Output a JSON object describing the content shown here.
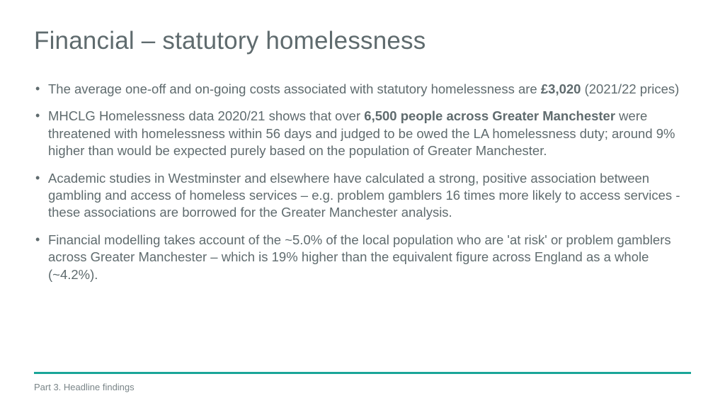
{
  "title": "Financial – statutory homelessness",
  "bullets": [
    {
      "pre": "The average one-off and on-going costs associated with statutory homelessness are ",
      "bold": "£3,020",
      "post": " (2021/22 prices)"
    },
    {
      "pre": "MHCLG Homelessness data 2020/21 shows that over ",
      "bold": "6,500 people across Greater Manchester",
      "post": " were threatened with homelessness within 56 days and judged to be owed the LA homelessness duty; around 9% higher than would be expected purely based on the population of Greater Manchester."
    },
    {
      "pre": "Academic studies in Westminster and elsewhere have calculated a strong, positive association between gambling and access of homeless services – e.g. problem gamblers 16 times more likely to access services - these associations are borrowed for the Greater Manchester analysis.",
      "bold": "",
      "post": ""
    },
    {
      "pre": "Financial modelling takes account of the ~5.0% of the local population who are 'at risk' or problem gamblers across Greater Manchester – which is 19% higher than the equivalent figure across England as a whole (~4.2%).",
      "bold": "",
      "post": ""
    }
  ],
  "footer": "Part 3. Headline findings",
  "colors": {
    "text": "#5f6b6e",
    "rule": "#1aa598",
    "footer_text": "#7a8588",
    "background": "#ffffff"
  },
  "fontsize": {
    "title": 35,
    "body": 18.5,
    "footer": 13
  }
}
